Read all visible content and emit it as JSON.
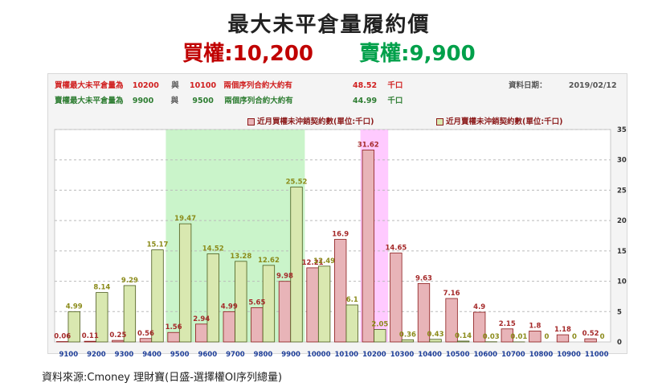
{
  "header": {
    "title": "最大未平倉量履約價",
    "call_label": "買權:10,200",
    "put_label": "賣權:9,900"
  },
  "info": {
    "row1": {
      "label": "買權最大未平倉量為",
      "strike1": "10200",
      "sep": "與",
      "strike2": "10100",
      "desc": "兩個序列合約大約有",
      "value": "48.52",
      "unit": "千口"
    },
    "row2": {
      "label": "賣權最大未平倉量為",
      "strike1": "9900",
      "sep": "與",
      "strike2": "9500",
      "desc": "兩個序列合約大約有",
      "value": "44.99",
      "unit": "千口"
    },
    "date_label": "資料日期：",
    "date_value": "2019/02/12"
  },
  "legend": {
    "call": "近月買權未沖銷契約數(單位:千口)",
    "put": "近月賣權未沖銷契約數(單位:千口)"
  },
  "source": "資料來源:Cmoney 理財寶(日盛-選擇權OI序列總量)",
  "colors": {
    "call_fill": "#e8b4b8",
    "call_stroke": "#8b1a1a",
    "put_fill": "#d9e8b0",
    "put_stroke": "#4a5a1a",
    "call_label": "#a52a2a",
    "put_label": "#8b8b1a",
    "green_band": "#b8f0b8",
    "pink_band": "#ffb8ff"
  },
  "chart_data": {
    "type": "bar",
    "categories": [
      "9100",
      "9200",
      "9300",
      "9400",
      "9500",
      "9600",
      "9700",
      "9800",
      "9900",
      "10000",
      "10100",
      "10200",
      "10300",
      "10400",
      "10500",
      "10600",
      "10700",
      "10800",
      "10900",
      "11000"
    ],
    "series": [
      {
        "name": "近月買權未沖銷契約數(單位:千口)",
        "values": [
          0.06,
          0.11,
          0.25,
          0.56,
          1.56,
          2.94,
          4.99,
          5.65,
          9.98,
          12.21,
          16.9,
          31.62,
          14.65,
          9.63,
          7.16,
          4.9,
          2.15,
          1.8,
          1.18,
          0.52
        ]
      },
      {
        "name": "近月賣權未沖銷契約數(單位:千口)",
        "values": [
          4.99,
          8.14,
          9.29,
          15.17,
          19.47,
          14.52,
          13.28,
          12.62,
          25.52,
          12.49,
          6.1,
          2.05,
          0.36,
          0.43,
          0.14,
          0.03,
          0.01,
          0,
          0,
          0
        ]
      }
    ],
    "ylim": [
      0,
      35
    ],
    "yticks": [
      0,
      5,
      10,
      15,
      20,
      25,
      30,
      35
    ],
    "highlight_put_range": [
      "9500",
      "9900"
    ],
    "highlight_call": "10200",
    "grid": true
  }
}
